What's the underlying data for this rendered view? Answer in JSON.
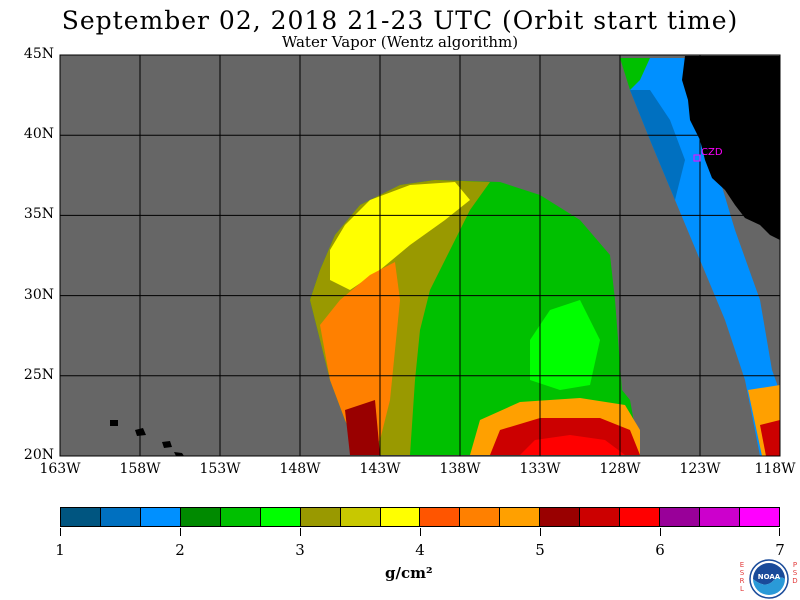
{
  "title": "September 02, 2018  21-23 UTC  (Orbit start time)",
  "subtitle": "Water Vapor (Wentz algorithm)",
  "map": {
    "lon_range": [
      -163,
      -118
    ],
    "lat_range": [
      20,
      45
    ],
    "lat_labels": [
      "45N",
      "40N",
      "35N",
      "30N",
      "25N",
      "20N"
    ],
    "lon_labels": [
      "163W",
      "158W",
      "153W",
      "148W",
      "143W",
      "138W",
      "133W",
      "128W",
      "123W",
      "118W"
    ],
    "station_label": "CZD",
    "colors": {
      "no_data": "#666666",
      "land": "#000000",
      "grid": "#000000",
      "station": "#ff00ff"
    }
  },
  "colorbar": {
    "colors": [
      "#005580",
      "#0070c0",
      "#0090ff",
      "#008a00",
      "#00c000",
      "#00ff00",
      "#999900",
      "#c8c800",
      "#ffff00",
      "#ff5500",
      "#ff8000",
      "#ffa000",
      "#990000",
      "#cc0000",
      "#ff0000",
      "#990099",
      "#cc00cc",
      "#ff00ff"
    ],
    "tick_labels": [
      "1",
      "2",
      "3",
      "4",
      "5",
      "6",
      "7"
    ],
    "range": [
      1,
      7
    ]
  },
  "units": "g/cm²",
  "logo": {
    "left_text": "ESRL",
    "right_text": "PSD",
    "name": "noaa-logo"
  }
}
